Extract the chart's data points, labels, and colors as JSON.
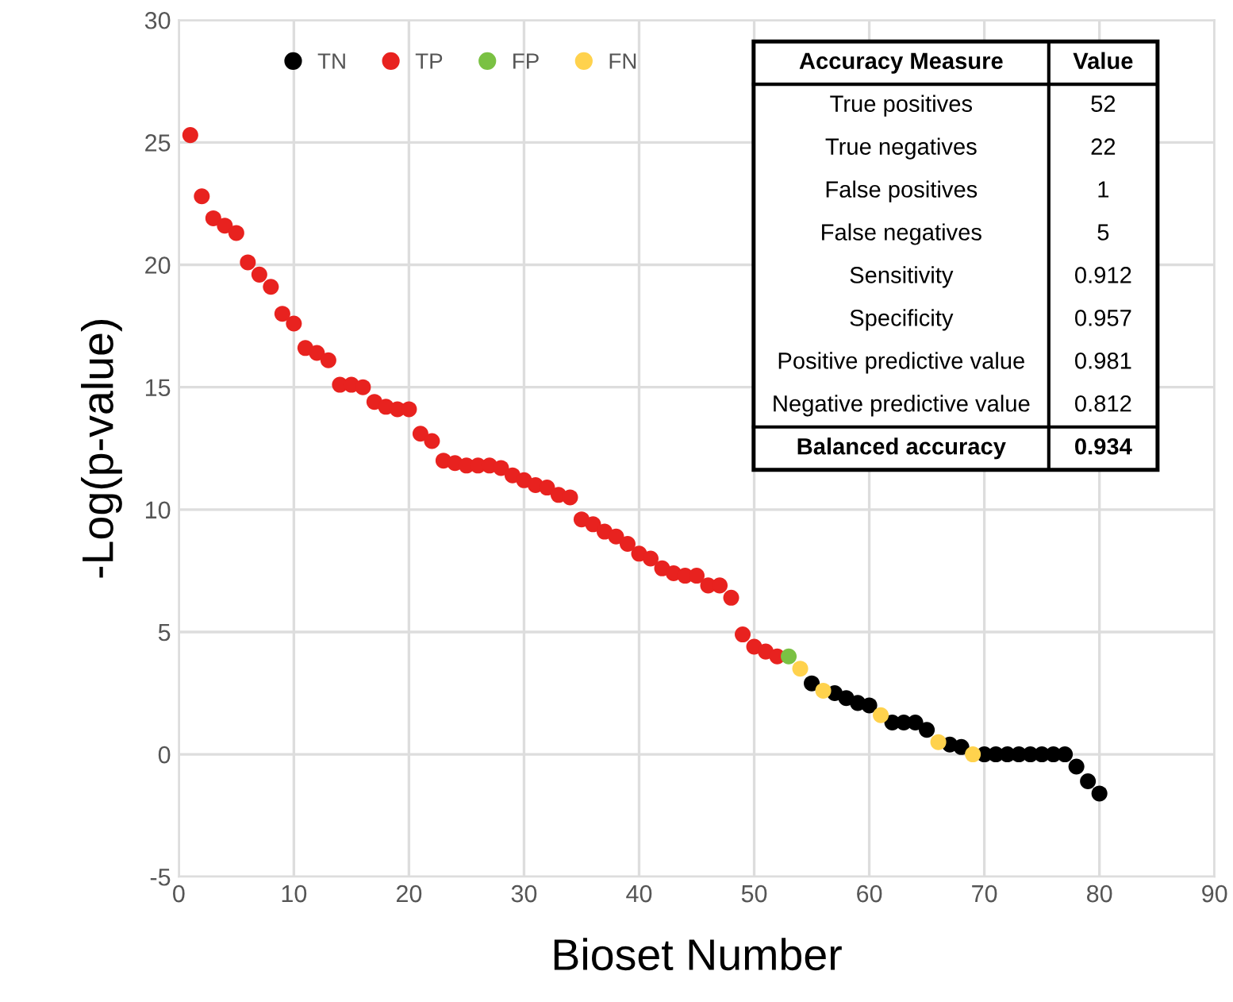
{
  "chart_data": {
    "type": "scatter",
    "xlabel": "Bioset Number",
    "ylabel": "-Log(p-value)",
    "xlim": [
      0,
      90
    ],
    "xticks": [
      0,
      10,
      20,
      30,
      40,
      50,
      60,
      70,
      80,
      90
    ],
    "ylim": [
      -5,
      30
    ],
    "yticks": [
      -5,
      0,
      5,
      10,
      15,
      20,
      25,
      30
    ],
    "grid": true,
    "legend": "top left",
    "marker": "circle",
    "series": [
      {
        "name": "TN",
        "color": "#000000",
        "x": [
          55,
          57,
          58,
          59,
          60,
          62,
          63,
          64,
          65,
          67,
          68,
          70,
          71,
          72,
          73,
          74,
          75,
          76,
          77,
          78,
          79,
          80
        ],
        "values": [
          2.9,
          2.5,
          2.3,
          2.1,
          2.0,
          1.3,
          1.3,
          1.3,
          1.0,
          0.4,
          0.3,
          0.0,
          0.0,
          0.0,
          0.0,
          0.0,
          0.0,
          0.0,
          0.0,
          -0.5,
          -1.1,
          -1.6
        ]
      },
      {
        "name": "TP",
        "color": "#e8221f",
        "x": [
          1,
          2,
          3,
          4,
          5,
          6,
          7,
          8,
          9,
          10,
          11,
          12,
          13,
          14,
          15,
          16,
          17,
          18,
          19,
          20,
          21,
          22,
          23,
          24,
          25,
          26,
          27,
          28,
          29,
          30,
          31,
          32,
          33,
          34,
          35,
          36,
          37,
          38,
          39,
          40,
          41,
          42,
          43,
          44,
          45,
          46,
          47,
          48,
          49,
          50,
          51,
          52
        ],
        "values": [
          25.3,
          22.8,
          21.9,
          21.6,
          21.3,
          20.1,
          19.6,
          19.1,
          18.0,
          17.6,
          16.6,
          16.4,
          16.1,
          15.1,
          15.1,
          15.0,
          14.4,
          14.2,
          14.1,
          14.1,
          13.1,
          12.8,
          12.0,
          11.9,
          11.8,
          11.8,
          11.8,
          11.7,
          11.4,
          11.2,
          11.0,
          10.9,
          10.6,
          10.5,
          9.6,
          9.4,
          9.1,
          8.9,
          8.6,
          8.2,
          8.0,
          7.6,
          7.4,
          7.3,
          7.3,
          6.9,
          6.9,
          6.4,
          4.9,
          4.4,
          4.2,
          4.0
        ]
      },
      {
        "name": "FP",
        "color": "#7ac143",
        "x": [
          53
        ],
        "values": [
          4.0
        ]
      },
      {
        "name": "FN",
        "color": "#ffd24d",
        "x": [
          54,
          56,
          61,
          66,
          69
        ],
        "values": [
          3.5,
          2.6,
          1.6,
          0.5,
          0.0
        ]
      }
    ],
    "annotations": [
      "Accuracy Measure",
      "Value",
      "True positives",
      "52",
      "True negatives",
      "22",
      "False positives",
      "1",
      "False negatives",
      "5",
      "Sensitivity",
      "0.912",
      "Specificity",
      "0.957",
      "Positive predictive value",
      "0.981",
      "Negative predictive value",
      "0.812",
      "Balanced accuracy",
      "0.934"
    ]
  }
}
